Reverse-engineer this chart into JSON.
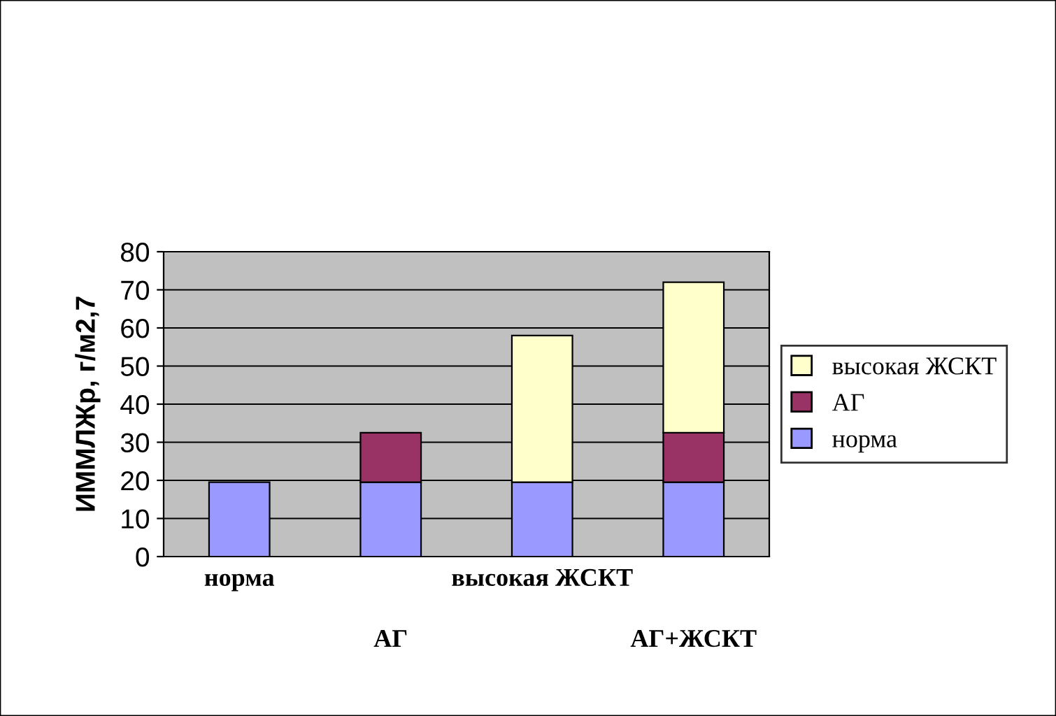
{
  "chart_data": {
    "type": "bar",
    "stacked": true,
    "ylabel": "ИММЛЖр, г/м2,7",
    "categories": [
      "норма",
      "АГ",
      "высокая ЖСКТ",
      "АГ+ЖСКТ"
    ],
    "series": [
      {
        "name": "норма",
        "color": "#9999ff",
        "values": [
          19.5,
          19.5,
          19.5,
          19.5
        ]
      },
      {
        "name": "АГ",
        "color": "#993366",
        "values": [
          null,
          13,
          null,
          13
        ]
      },
      {
        "name": "высокая ЖСКТ",
        "color": "#ffffcc",
        "values": [
          null,
          null,
          38.5,
          39.5
        ]
      }
    ],
    "ylim": [
      0,
      80
    ],
    "yticks": [
      0,
      10,
      20,
      30,
      40,
      50,
      60,
      70,
      80
    ],
    "grid": "y",
    "legend": "right"
  }
}
